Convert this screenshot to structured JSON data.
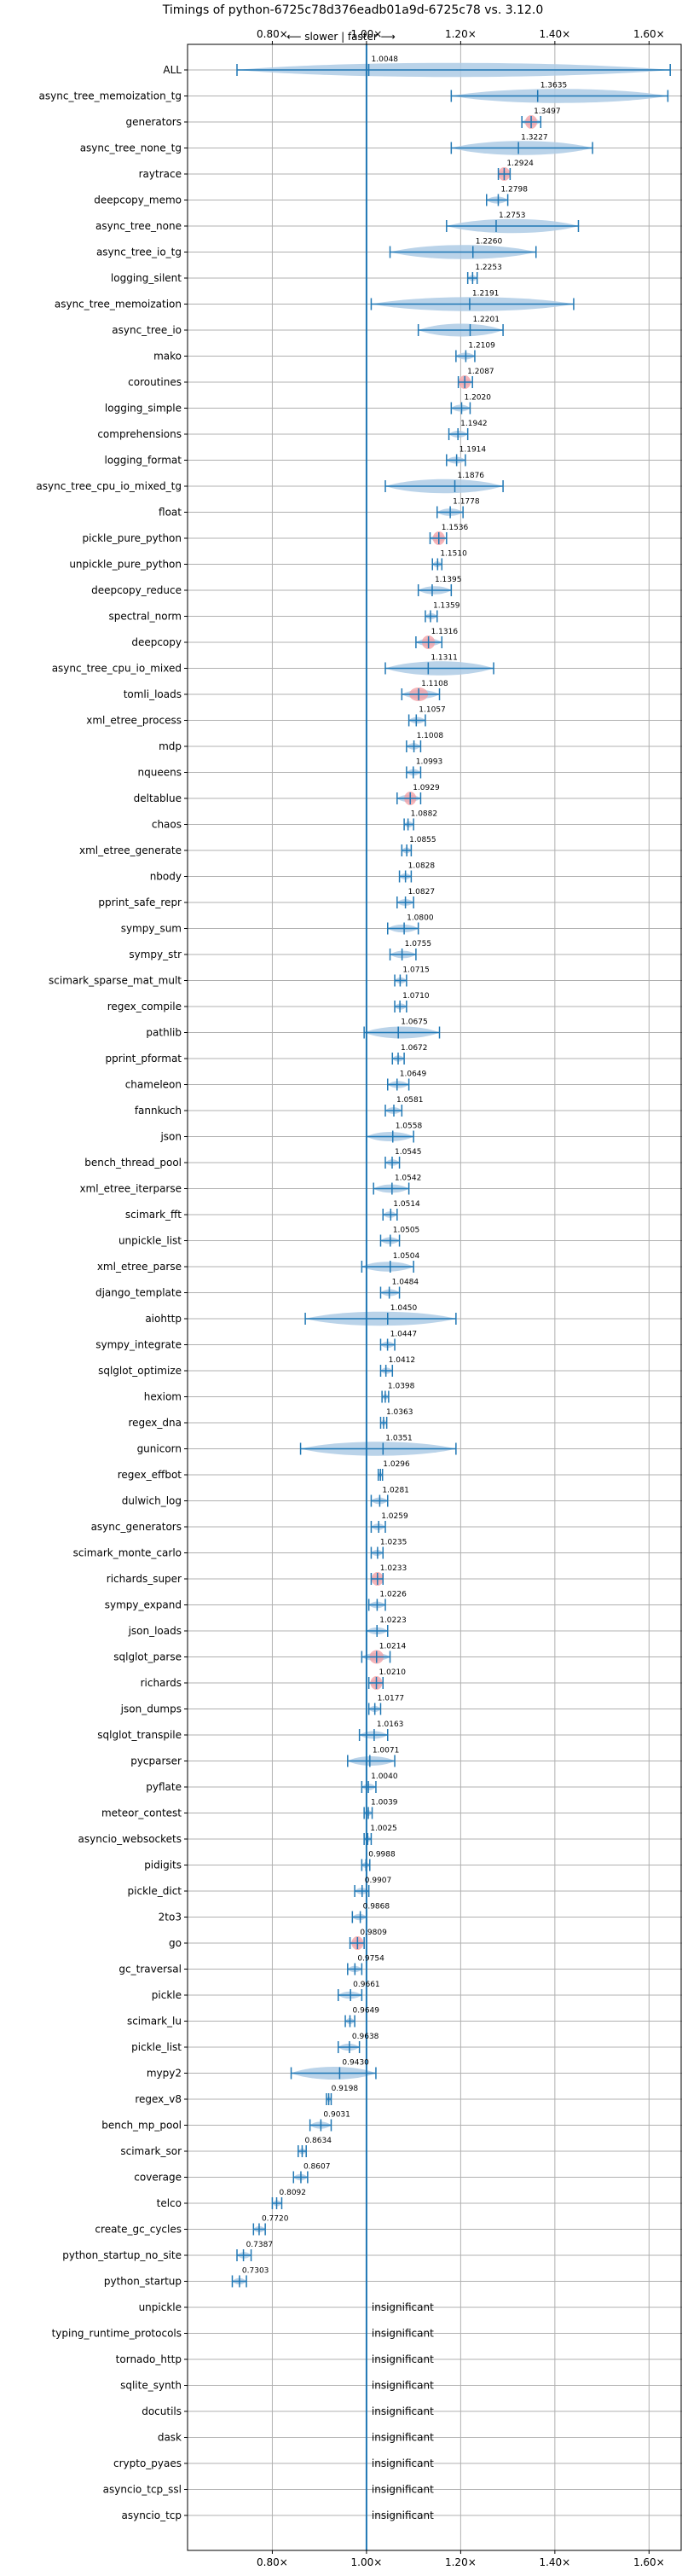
{
  "chart_data": {
    "type": "violin",
    "title": "Timings of python-6725c78d376eadb01a9d-6725c78 vs. 3.12.0",
    "direction_label": "⟵ slower | faster ⟶",
    "x_ticks": [
      0.8,
      1.0,
      1.2,
      1.4,
      1.6
    ],
    "x_tick_labels": [
      "0.80×",
      "1.00×",
      "1.20×",
      "1.40×",
      "1.60×"
    ],
    "xlim": [
      0.62,
      1.67
    ],
    "grid": true,
    "colors": {
      "violin": "#aecbe5",
      "whisker": "#1f77b4",
      "highlight": "#f4a3a8",
      "baseline": "#1f77b4",
      "grid": "#b0b0b0"
    },
    "insignificant_text": "insignificant",
    "benchmarks": [
      {
        "name": "ALL",
        "value": 1.0048,
        "label": "1.0048",
        "lo": 0.725,
        "hi": 1.645
      },
      {
        "name": "async_tree_memoization_tg",
        "value": 1.3635,
        "label": "1.3635",
        "lo": 1.18,
        "hi": 1.64
      },
      {
        "name": "generators",
        "value": 1.3497,
        "label": "1.3497",
        "lo": 1.33,
        "hi": 1.37,
        "highlight": true
      },
      {
        "name": "async_tree_none_tg",
        "value": 1.3227,
        "label": "1.3227",
        "lo": 1.18,
        "hi": 1.48
      },
      {
        "name": "raytrace",
        "value": 1.2924,
        "label": "1.2924",
        "lo": 1.28,
        "hi": 1.305,
        "highlight": true
      },
      {
        "name": "deepcopy_memo",
        "value": 1.2798,
        "label": "1.2798",
        "lo": 1.255,
        "hi": 1.3
      },
      {
        "name": "async_tree_none",
        "value": 1.2753,
        "label": "1.2753",
        "lo": 1.17,
        "hi": 1.45
      },
      {
        "name": "async_tree_io_tg",
        "value": 1.226,
        "label": "1.2260",
        "lo": 1.05,
        "hi": 1.36
      },
      {
        "name": "logging_silent",
        "value": 1.2253,
        "label": "1.2253",
        "lo": 1.215,
        "hi": 1.235
      },
      {
        "name": "async_tree_memoization",
        "value": 1.2191,
        "label": "1.2191",
        "lo": 1.01,
        "hi": 1.44
      },
      {
        "name": "async_tree_io",
        "value": 1.2201,
        "label": "1.2201",
        "lo": 1.11,
        "hi": 1.29
      },
      {
        "name": "mako",
        "value": 1.2109,
        "label": "1.2109",
        "lo": 1.19,
        "hi": 1.23
      },
      {
        "name": "coroutines",
        "value": 1.2087,
        "label": "1.2087",
        "lo": 1.195,
        "hi": 1.225,
        "highlight": true
      },
      {
        "name": "logging_simple",
        "value": 1.202,
        "label": "1.2020",
        "lo": 1.18,
        "hi": 1.22
      },
      {
        "name": "comprehensions",
        "value": 1.1942,
        "label": "1.1942",
        "lo": 1.175,
        "hi": 1.215
      },
      {
        "name": "logging_format",
        "value": 1.1914,
        "label": "1.1914",
        "lo": 1.17,
        "hi": 1.21
      },
      {
        "name": "async_tree_cpu_io_mixed_tg",
        "value": 1.1876,
        "label": "1.1876",
        "lo": 1.04,
        "hi": 1.29
      },
      {
        "name": "float",
        "value": 1.1778,
        "label": "1.1778",
        "lo": 1.15,
        "hi": 1.205
      },
      {
        "name": "pickle_pure_python",
        "value": 1.1536,
        "label": "1.1536",
        "lo": 1.135,
        "hi": 1.17,
        "highlight": true
      },
      {
        "name": "unpickle_pure_python",
        "value": 1.151,
        "label": "1.1510",
        "lo": 1.14,
        "hi": 1.16
      },
      {
        "name": "deepcopy_reduce",
        "value": 1.1395,
        "label": "1.1395",
        "lo": 1.11,
        "hi": 1.18
      },
      {
        "name": "spectral_norm",
        "value": 1.1359,
        "label": "1.1359",
        "lo": 1.125,
        "hi": 1.15
      },
      {
        "name": "deepcopy",
        "value": 1.1316,
        "label": "1.1316",
        "lo": 1.105,
        "hi": 1.16,
        "highlight": true
      },
      {
        "name": "async_tree_cpu_io_mixed",
        "value": 1.1311,
        "label": "1.1311",
        "lo": 1.04,
        "hi": 1.27
      },
      {
        "name": "tomli_loads",
        "value": 1.1108,
        "label": "1.1108",
        "lo": 1.075,
        "hi": 1.155,
        "highlight": true
      },
      {
        "name": "xml_etree_process",
        "value": 1.1057,
        "label": "1.1057",
        "lo": 1.09,
        "hi": 1.125
      },
      {
        "name": "mdp",
        "value": 1.1008,
        "label": "1.1008",
        "lo": 1.085,
        "hi": 1.115
      },
      {
        "name": "nqueens",
        "value": 1.0993,
        "label": "1.0993",
        "lo": 1.085,
        "hi": 1.115
      },
      {
        "name": "deltablue",
        "value": 1.0929,
        "label": "1.0929",
        "lo": 1.065,
        "hi": 1.115,
        "highlight": true
      },
      {
        "name": "chaos",
        "value": 1.0882,
        "label": "1.0882",
        "lo": 1.08,
        "hi": 1.1
      },
      {
        "name": "xml_etree_generate",
        "value": 1.0855,
        "label": "1.0855",
        "lo": 1.075,
        "hi": 1.095
      },
      {
        "name": "nbody",
        "value": 1.0828,
        "label": "1.0828",
        "lo": 1.07,
        "hi": 1.095
      },
      {
        "name": "pprint_safe_repr",
        "value": 1.0827,
        "label": "1.0827",
        "lo": 1.065,
        "hi": 1.1
      },
      {
        "name": "sympy_sum",
        "value": 1.08,
        "label": "1.0800",
        "lo": 1.045,
        "hi": 1.11
      },
      {
        "name": "sympy_str",
        "value": 1.0755,
        "label": "1.0755",
        "lo": 1.05,
        "hi": 1.105
      },
      {
        "name": "scimark_sparse_mat_mult",
        "value": 1.0715,
        "label": "1.0715",
        "lo": 1.06,
        "hi": 1.085
      },
      {
        "name": "regex_compile",
        "value": 1.071,
        "label": "1.0710",
        "lo": 1.06,
        "hi": 1.085
      },
      {
        "name": "pathlib",
        "value": 1.0675,
        "label": "1.0675",
        "lo": 0.995,
        "hi": 1.155
      },
      {
        "name": "pprint_pformat",
        "value": 1.0672,
        "label": "1.0672",
        "lo": 1.055,
        "hi": 1.08
      },
      {
        "name": "chameleon",
        "value": 1.0649,
        "label": "1.0649",
        "lo": 1.045,
        "hi": 1.09
      },
      {
        "name": "fannkuch",
        "value": 1.0581,
        "label": "1.0581",
        "lo": 1.04,
        "hi": 1.075
      },
      {
        "name": "json",
        "value": 1.0558,
        "label": "1.0558",
        "lo": 1.0,
        "hi": 1.1
      },
      {
        "name": "bench_thread_pool",
        "value": 1.0545,
        "label": "1.0545",
        "lo": 1.04,
        "hi": 1.07
      },
      {
        "name": "xml_etree_iterparse",
        "value": 1.0542,
        "label": "1.0542",
        "lo": 1.015,
        "hi": 1.09
      },
      {
        "name": "scimark_fft",
        "value": 1.0514,
        "label": "1.0514",
        "lo": 1.035,
        "hi": 1.065
      },
      {
        "name": "unpickle_list",
        "value": 1.0505,
        "label": "1.0505",
        "lo": 1.03,
        "hi": 1.07
      },
      {
        "name": "xml_etree_parse",
        "value": 1.0504,
        "label": "1.0504",
        "lo": 0.99,
        "hi": 1.1
      },
      {
        "name": "django_template",
        "value": 1.0484,
        "label": "1.0484",
        "lo": 1.03,
        "hi": 1.07
      },
      {
        "name": "aiohttp",
        "value": 1.045,
        "label": "1.0450",
        "lo": 0.87,
        "hi": 1.19
      },
      {
        "name": "sympy_integrate",
        "value": 1.0447,
        "label": "1.0447",
        "lo": 1.03,
        "hi": 1.06
      },
      {
        "name": "sqlglot_optimize",
        "value": 1.0412,
        "label": "1.0412",
        "lo": 1.03,
        "hi": 1.055
      },
      {
        "name": "hexiom",
        "value": 1.0398,
        "label": "1.0398",
        "lo": 1.033,
        "hi": 1.047
      },
      {
        "name": "regex_dna",
        "value": 1.0363,
        "label": "1.0363",
        "lo": 1.03,
        "hi": 1.043
      },
      {
        "name": "gunicorn",
        "value": 1.0351,
        "label": "1.0351",
        "lo": 0.86,
        "hi": 1.19
      },
      {
        "name": "regex_effbot",
        "value": 1.0296,
        "label": "1.0296",
        "lo": 1.025,
        "hi": 1.034
      },
      {
        "name": "dulwich_log",
        "value": 1.0281,
        "label": "1.0281",
        "lo": 1.01,
        "hi": 1.045
      },
      {
        "name": "async_generators",
        "value": 1.0259,
        "label": "1.0259",
        "lo": 1.01,
        "hi": 1.04
      },
      {
        "name": "scimark_monte_carlo",
        "value": 1.0235,
        "label": "1.0235",
        "lo": 1.01,
        "hi": 1.035
      },
      {
        "name": "richards_super",
        "value": 1.0233,
        "label": "1.0233",
        "lo": 1.01,
        "hi": 1.035,
        "highlight": true
      },
      {
        "name": "sympy_expand",
        "value": 1.0226,
        "label": "1.0226",
        "lo": 1.005,
        "hi": 1.04
      },
      {
        "name": "json_loads",
        "value": 1.0223,
        "label": "1.0223",
        "lo": 1.0,
        "hi": 1.045
      },
      {
        "name": "sqlglot_parse",
        "value": 1.0214,
        "label": "1.0214",
        "lo": 0.99,
        "hi": 1.05,
        "highlight": true
      },
      {
        "name": "richards",
        "value": 1.021,
        "label": "1.0210",
        "lo": 1.005,
        "hi": 1.035,
        "highlight": true
      },
      {
        "name": "json_dumps",
        "value": 1.0177,
        "label": "1.0177",
        "lo": 1.005,
        "hi": 1.03
      },
      {
        "name": "sqlglot_transpile",
        "value": 1.0163,
        "label": "1.0163",
        "lo": 0.985,
        "hi": 1.045
      },
      {
        "name": "pycparser",
        "value": 1.0071,
        "label": "1.0071",
        "lo": 0.96,
        "hi": 1.06
      },
      {
        "name": "pyflate",
        "value": 1.004,
        "label": "1.0040",
        "lo": 0.99,
        "hi": 1.02
      },
      {
        "name": "meteor_contest",
        "value": 1.0039,
        "label": "1.0039",
        "lo": 0.995,
        "hi": 1.012
      },
      {
        "name": "asyncio_websockets",
        "value": 1.0025,
        "label": "1.0025",
        "lo": 0.995,
        "hi": 1.01
      },
      {
        "name": "pidigits",
        "value": 0.9988,
        "label": "0.9988",
        "lo": 0.99,
        "hi": 1.007
      },
      {
        "name": "pickle_dict",
        "value": 0.9907,
        "label": "0.9907",
        "lo": 0.975,
        "hi": 1.005
      },
      {
        "name": "2to3",
        "value": 0.9868,
        "label": "0.9868",
        "lo": 0.97,
        "hi": 1.0
      },
      {
        "name": "go",
        "value": 0.9809,
        "label": "0.9809",
        "lo": 0.965,
        "hi": 0.995,
        "highlight": true
      },
      {
        "name": "gc_traversal",
        "value": 0.9754,
        "label": "0.9754",
        "lo": 0.96,
        "hi": 0.99
      },
      {
        "name": "pickle",
        "value": 0.9661,
        "label": "0.9661",
        "lo": 0.94,
        "hi": 0.99
      },
      {
        "name": "scimark_lu",
        "value": 0.9649,
        "label": "0.9649",
        "lo": 0.955,
        "hi": 0.975
      },
      {
        "name": "pickle_list",
        "value": 0.9638,
        "label": "0.9638",
        "lo": 0.94,
        "hi": 0.985
      },
      {
        "name": "mypy2",
        "value": 0.943,
        "label": "0.9430",
        "lo": 0.84,
        "hi": 1.02
      },
      {
        "name": "regex_v8",
        "value": 0.9198,
        "label": "0.9198",
        "lo": 0.915,
        "hi": 0.925
      },
      {
        "name": "bench_mp_pool",
        "value": 0.9031,
        "label": "0.9031",
        "lo": 0.88,
        "hi": 0.925
      },
      {
        "name": "scimark_sor",
        "value": 0.8634,
        "label": "0.8634",
        "lo": 0.855,
        "hi": 0.872
      },
      {
        "name": "coverage",
        "value": 0.8607,
        "label": "0.8607",
        "lo": 0.845,
        "hi": 0.875
      },
      {
        "name": "telco",
        "value": 0.8092,
        "label": "0.8092",
        "lo": 0.8,
        "hi": 0.82
      },
      {
        "name": "create_gc_cycles",
        "value": 0.772,
        "label": "0.7720",
        "lo": 0.76,
        "hi": 0.785
      },
      {
        "name": "python_startup_no_site",
        "value": 0.7387,
        "label": "0.7387",
        "lo": 0.725,
        "hi": 0.755
      },
      {
        "name": "python_startup",
        "value": 0.7303,
        "label": "0.7303",
        "lo": 0.715,
        "hi": 0.745
      },
      {
        "name": "unpickle",
        "insignificant": true
      },
      {
        "name": "typing_runtime_protocols",
        "insignificant": true
      },
      {
        "name": "tornado_http",
        "insignificant": true
      },
      {
        "name": "sqlite_synth",
        "insignificant": true
      },
      {
        "name": "docutils",
        "insignificant": true
      },
      {
        "name": "dask",
        "insignificant": true
      },
      {
        "name": "crypto_pyaes",
        "insignificant": true
      },
      {
        "name": "asyncio_tcp_ssl",
        "insignificant": true
      },
      {
        "name": "asyncio_tcp",
        "insignificant": true
      }
    ]
  }
}
